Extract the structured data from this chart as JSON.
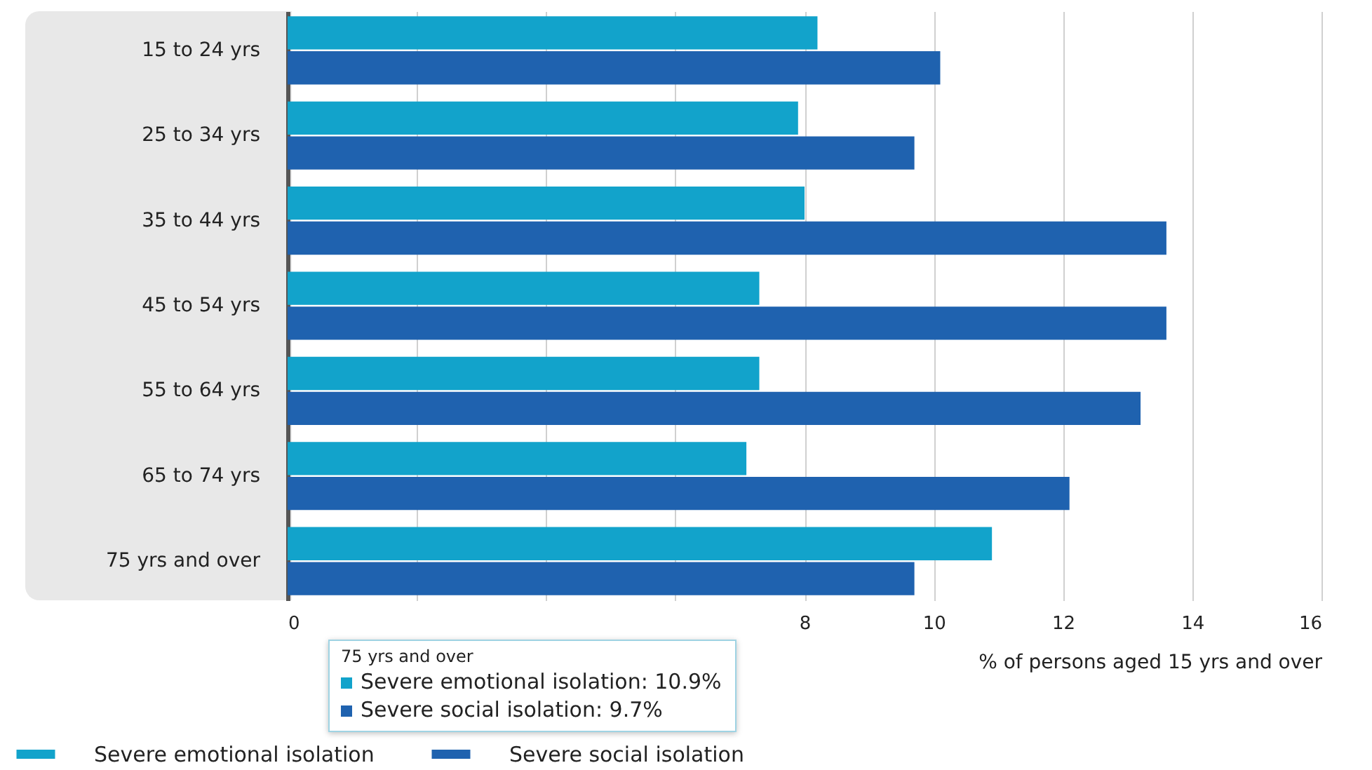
{
  "chart_data": {
    "type": "bar",
    "orientation": "horizontal",
    "categories": [
      "15 to 24 yrs",
      "25 to 34 yrs",
      "35 to 44 yrs",
      "45 to 54 yrs",
      "55 to 64 yrs",
      "65 to 74 yrs",
      "75 yrs and over"
    ],
    "series": [
      {
        "name": "Severe emotional isolation",
        "color": "#12a3cb",
        "values": [
          8.2,
          7.9,
          8.0,
          7.3,
          7.3,
          7.1,
          10.9
        ]
      },
      {
        "name": "Severe social isolation",
        "color": "#1f62af",
        "values": [
          10.1,
          9.7,
          13.6,
          13.6,
          13.2,
          12.1,
          9.7
        ]
      }
    ],
    "xlabel": "% of persons aged 15 yrs and over",
    "xlim": [
      0,
      16
    ],
    "xticks": [
      0,
      {
        "value": 2,
        "label": null
      },
      {
        "value": 4,
        "label": null
      },
      {
        "value": 6,
        "label": null
      },
      8,
      10,
      12,
      14,
      16
    ],
    "grid": "x",
    "legend": "bottom left",
    "annotations": [
      "75 yrs and over",
      "Severe emotional isolation: 10.9%",
      "Severe social isolation: 9.7%"
    ]
  }
}
